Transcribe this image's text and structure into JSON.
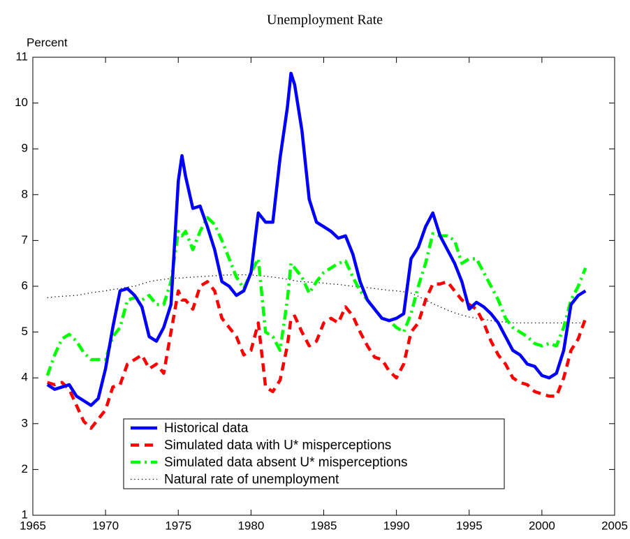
{
  "chart_data": {
    "type": "line",
    "title": "Unemployment Rate",
    "ylabel": "Percent",
    "x": [
      1966,
      1966.5,
      1967,
      1967.5,
      1968,
      1968.5,
      1969,
      1969.5,
      1970,
      1970.5,
      1971,
      1971.5,
      1972,
      1972.5,
      1973,
      1973.5,
      1974,
      1974.5,
      1975,
      1975.25,
      1975.5,
      1976,
      1976.5,
      1977,
      1977.5,
      1978,
      1978.5,
      1979,
      1979.5,
      1980,
      1980.5,
      1981,
      1981.5,
      1982,
      1982.5,
      1982.75,
      1983,
      1983.5,
      1984,
      1984.5,
      1985,
      1985.5,
      1986,
      1986.5,
      1987,
      1987.5,
      1988,
      1988.5,
      1989,
      1989.5,
      1990,
      1990.5,
      1991,
      1991.5,
      1992,
      1992.5,
      1993,
      1993.5,
      1994,
      1994.5,
      1995,
      1995.5,
      1996,
      1996.5,
      1997,
      1997.5,
      1998,
      1998.5,
      1999,
      1999.5,
      2000,
      2000.5,
      2001,
      2001.5,
      2002,
      2002.5,
      2003
    ],
    "series": [
      {
        "name": "Historical data",
        "color": "#0000ff",
        "style": "solid",
        "values": [
          3.85,
          3.75,
          3.8,
          3.85,
          3.6,
          3.5,
          3.4,
          3.55,
          4.2,
          5.1,
          5.9,
          5.95,
          5.8,
          5.55,
          4.9,
          4.8,
          5.1,
          5.6,
          8.3,
          8.85,
          8.4,
          7.7,
          7.75,
          7.3,
          6.8,
          6.1,
          6.0,
          5.8,
          5.9,
          6.3,
          7.6,
          7.4,
          7.4,
          8.8,
          9.9,
          10.65,
          10.4,
          9.4,
          7.9,
          7.4,
          7.3,
          7.2,
          7.05,
          7.1,
          6.7,
          6.1,
          5.7,
          5.5,
          5.3,
          5.25,
          5.3,
          5.4,
          6.6,
          6.85,
          7.3,
          7.6,
          7.1,
          6.8,
          6.5,
          6.1,
          5.5,
          5.65,
          5.55,
          5.4,
          5.2,
          4.9,
          4.6,
          4.5,
          4.3,
          4.25,
          4.05,
          4.0,
          4.1,
          4.6,
          5.6,
          5.8,
          5.9
        ]
      },
      {
        "name": "Simulated data with U* misperceptions",
        "color": "#ff0000",
        "style": "dashed",
        "values": [
          3.9,
          3.85,
          3.9,
          3.75,
          3.4,
          3.05,
          2.9,
          3.1,
          3.3,
          3.8,
          3.85,
          4.3,
          4.4,
          4.5,
          4.2,
          4.3,
          4.1,
          5.0,
          5.9,
          5.7,
          5.7,
          5.5,
          6.0,
          6.1,
          5.9,
          5.3,
          5.1,
          4.9,
          4.5,
          4.6,
          5.2,
          3.8,
          3.7,
          3.95,
          4.7,
          5.3,
          5.35,
          5.0,
          4.7,
          4.8,
          5.2,
          5.3,
          5.2,
          5.55,
          5.35,
          5.0,
          4.7,
          4.45,
          4.4,
          4.15,
          4.0,
          4.3,
          5.0,
          5.2,
          5.7,
          6.05,
          6.05,
          6.1,
          5.9,
          5.7,
          5.6,
          5.5,
          5.2,
          4.8,
          4.5,
          4.3,
          4.0,
          3.9,
          3.85,
          3.7,
          3.65,
          3.6,
          3.6,
          4.0,
          4.6,
          4.85,
          5.3
        ]
      },
      {
        "name": "Simulated data absent U* misperceptions",
        "color": "#00ff00",
        "style": "dashdot",
        "values": [
          4.05,
          4.5,
          4.85,
          4.95,
          4.8,
          4.55,
          4.4,
          4.4,
          4.4,
          4.9,
          5.1,
          5.7,
          5.75,
          5.7,
          5.8,
          5.6,
          5.6,
          6.1,
          7.2,
          7.1,
          7.2,
          6.8,
          7.2,
          7.5,
          7.35,
          7.0,
          6.6,
          6.2,
          5.95,
          6.3,
          6.6,
          5.0,
          4.9,
          4.6,
          5.7,
          6.5,
          6.4,
          6.2,
          5.85,
          6.1,
          6.3,
          6.4,
          6.5,
          6.55,
          6.2,
          5.9,
          5.7,
          5.5,
          5.3,
          5.25,
          5.1,
          5.0,
          5.4,
          6.0,
          6.5,
          7.15,
          7.1,
          7.1,
          7.0,
          6.5,
          6.6,
          6.6,
          6.3,
          6.0,
          5.7,
          5.3,
          5.1,
          5.0,
          4.9,
          4.75,
          4.7,
          4.75,
          4.7,
          5.1,
          5.7,
          6.0,
          6.4
        ]
      },
      {
        "name": "Natural rate of unemployment",
        "color": "#000000",
        "style": "dotted",
        "values": [
          5.75,
          5.77,
          5.78,
          5.79,
          5.8,
          5.83,
          5.86,
          5.88,
          5.9,
          5.93,
          5.95,
          5.98,
          6.0,
          6.05,
          6.1,
          6.13,
          6.15,
          6.17,
          6.18,
          6.18,
          6.19,
          6.2,
          6.21,
          6.22,
          6.23,
          6.24,
          6.25,
          6.25,
          6.25,
          6.25,
          6.23,
          6.22,
          6.2,
          6.18,
          6.15,
          6.14,
          6.12,
          6.1,
          6.09,
          6.08,
          6.07,
          6.05,
          6.04,
          6.02,
          6.0,
          5.99,
          5.97,
          5.95,
          5.93,
          5.91,
          5.9,
          5.88,
          5.85,
          5.78,
          5.7,
          5.62,
          5.55,
          5.48,
          5.42,
          5.37,
          5.33,
          5.3,
          5.28,
          5.25,
          5.23,
          5.22,
          5.2,
          5.2,
          5.2,
          5.2,
          5.2,
          5.2,
          5.2,
          5.2,
          5.2,
          5.2,
          5.2
        ]
      }
    ],
    "xlim": [
      1965,
      2005
    ],
    "xticks": [
      1965,
      1970,
      1975,
      1980,
      1985,
      1990,
      1995,
      2000,
      2005
    ],
    "ylim": [
      1,
      11
    ],
    "yticks": [
      1,
      2,
      3,
      4,
      5,
      6,
      7,
      8,
      9,
      10,
      11
    ],
    "grid": false,
    "legend": "lower center"
  }
}
